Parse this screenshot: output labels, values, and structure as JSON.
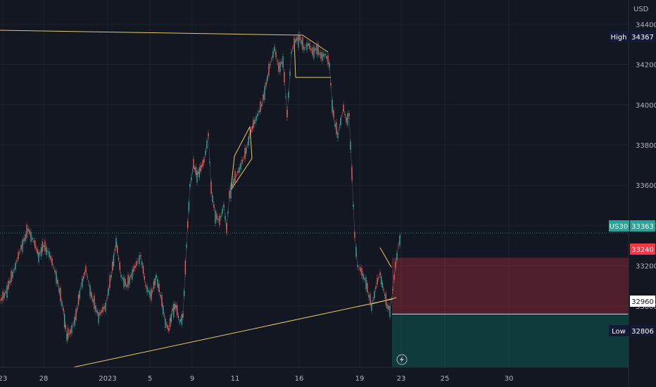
{
  "chart_data": {
    "type": "line",
    "currency": "USD",
    "symbol": "US30",
    "y_ticks": [
      33000,
      33200,
      33400,
      33600,
      33800,
      34000,
      34200,
      34400
    ],
    "ylim": [
      32860,
      34415
    ],
    "x_ticks": [
      "23",
      "28",
      "2023",
      "5",
      "9",
      "11",
      "16",
      "19",
      "23",
      "25",
      "30"
    ],
    "grid": true,
    "price_labels": [
      {
        "name": "High",
        "value": "34367",
        "color": "#131a33"
      },
      {
        "name": "US30",
        "value": "33363",
        "color": "#26a69a"
      },
      {
        "name": "",
        "value": "33240",
        "color": "#f23645"
      },
      {
        "name": "",
        "value": "32960",
        "color": "#ffffff"
      },
      {
        "name": "Low",
        "value": "32806",
        "color": "#131a33"
      }
    ],
    "series": [
      {
        "x": [
          0,
          10,
          20,
          30,
          40,
          48,
          55,
          62,
          70,
          80,
          90,
          95,
          100,
          108,
          115,
          122,
          130,
          140,
          150,
          158,
          165,
          172,
          180,
          190,
          200,
          207,
          215,
          222,
          230,
          235,
          240,
          245,
          250,
          255,
          260,
          265,
          270,
          275,
          280,
          285,
          290,
          296,
          300,
          306,
          312,
          318,
          322,
          326,
          332,
          340,
          348,
          355,
          360,
          366,
          372,
          378,
          384,
          390,
          396,
          402,
          408,
          414,
          420,
          426,
          432,
          438,
          444,
          450,
          456,
          462,
          468,
          472,
          476,
          480,
          484,
          488,
          492,
          496,
          500,
          504,
          508,
          512,
          516,
          520,
          524,
          528,
          532,
          536,
          540,
          545,
          550,
          554,
          558,
          562,
          566,
          570
        ],
        "values": [
          33020,
          33080,
          33180,
          33290,
          33380,
          33320,
          33250,
          33300,
          33260,
          33150,
          32980,
          32850,
          32870,
          32950,
          33100,
          33180,
          33050,
          32950,
          33000,
          33150,
          33320,
          33150,
          33100,
          33180,
          33250,
          33100,
          33050,
          33150,
          33020,
          32920,
          32880,
          32980,
          33000,
          32920,
          32950,
          33300,
          33600,
          33700,
          33650,
          33680,
          33720,
          33850,
          33580,
          33450,
          33420,
          33500,
          33380,
          33550,
          33620,
          33680,
          33750,
          33850,
          33900,
          33950,
          34000,
          34100,
          34200,
          34280,
          34180,
          34220,
          33950,
          34260,
          34320,
          34330,
          34280,
          34300,
          34260,
          34280,
          34240,
          34250,
          34200,
          34000,
          33900,
          33850,
          33920,
          33980,
          33920,
          33950,
          33650,
          33350,
          33200,
          33180,
          33150,
          33120,
          33050,
          33000,
          33060,
          33120,
          33160,
          33080,
          33000,
          32980,
          33080,
          33200,
          33300,
          33363
        ]
      }
    ],
    "zones": [
      {
        "name": "stop-zone",
        "from": 32960,
        "to": 33240,
        "color": "#f23645"
      },
      {
        "name": "target-zone",
        "to": 32960,
        "color": "#089981"
      }
    ]
  }
}
